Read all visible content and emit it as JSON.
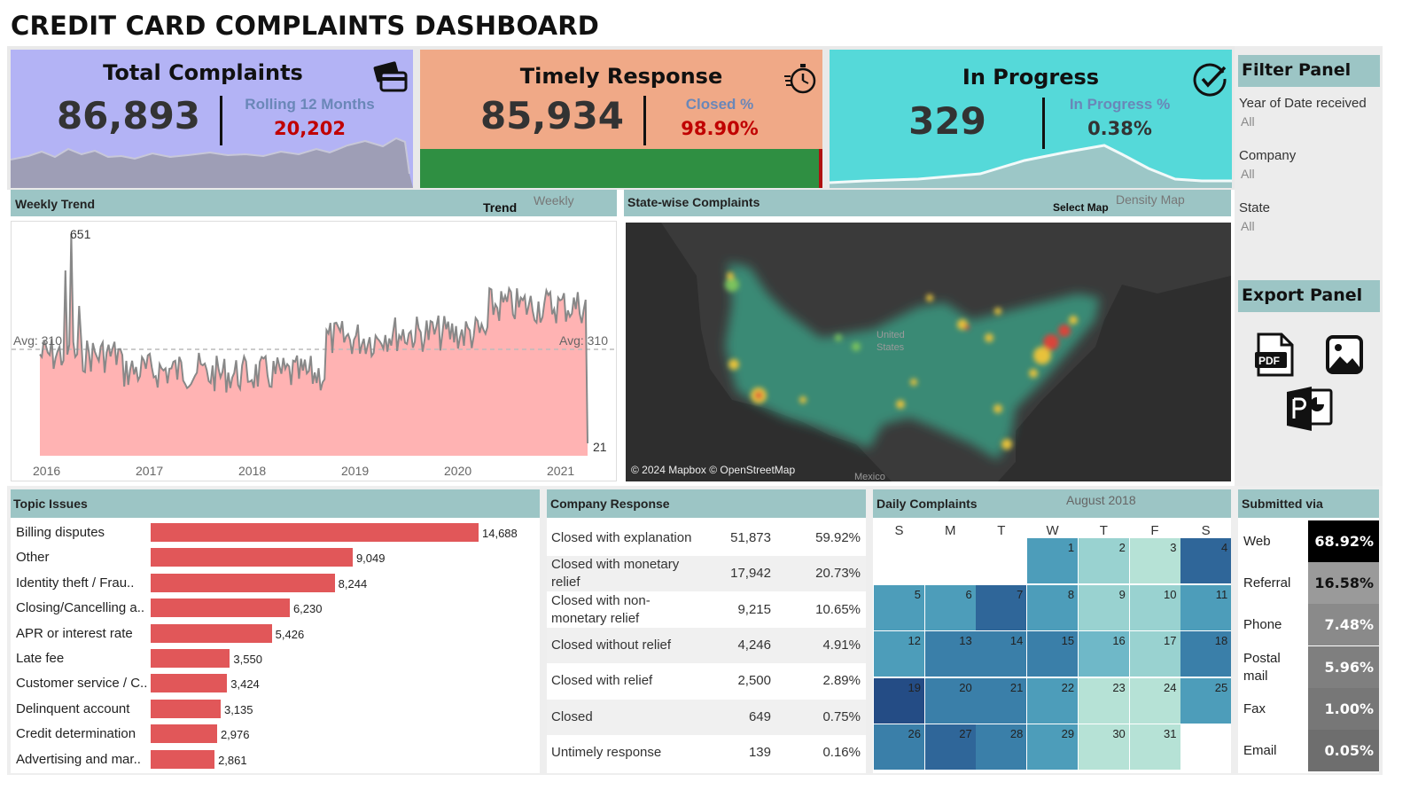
{
  "title": "CREDIT CARD COMPLAINTS DASHBOARD",
  "kpis": {
    "total": {
      "title": "Total Complaints",
      "value": "86,893",
      "sub_label": "Rolling 12 Months",
      "sub_value": "20,202",
      "icon": "credit-card-icon",
      "bg": "#b3b3f5",
      "sub_color": "#c00000"
    },
    "timely": {
      "title": "Timely Response",
      "value": "85,934",
      "sub_label": "Closed %",
      "sub_value": "98.90%",
      "icon": "stopwatch-icon",
      "bg": "#f0a987",
      "progress": 0.989,
      "sub_color": "#c00000"
    },
    "progress": {
      "title": "In Progress",
      "value": "329",
      "sub_label": "In Progress %",
      "sub_value": "0.38%",
      "icon": "check-circle-icon",
      "bg": "#55d9d9",
      "sub_color": "#333333"
    }
  },
  "weekly": {
    "header": "Weekly Trend",
    "trend_label": "Trend",
    "trend_value": "Weekly",
    "avg_label_left": "Avg: 310",
    "avg_label_right": "Avg: 310",
    "max_label": "651",
    "last_label": "21",
    "years": [
      "2016",
      "2017",
      "2018",
      "2019",
      "2020",
      "2021"
    ]
  },
  "map": {
    "header": "State-wise Complaints",
    "select_label": "Select Map",
    "select_value": "Density Map",
    "country_label_1": "United",
    "country_label_2": "States",
    "mexico_label": "Mexico",
    "attribution": "© 2024 Mapbox © OpenStreetMap"
  },
  "topics": {
    "header": "Topic Issues",
    "items": [
      {
        "label": "Billing disputes",
        "value": 14688,
        "display": "14,688"
      },
      {
        "label": "Other",
        "value": 9049,
        "display": "9,049"
      },
      {
        "label": "Identity theft / Frau..",
        "value": 8244,
        "display": "8,244"
      },
      {
        "label": "Closing/Cancelling a..",
        "value": 6230,
        "display": "6,230"
      },
      {
        "label": "APR or interest rate",
        "value": 5426,
        "display": "5,426"
      },
      {
        "label": "Late fee",
        "value": 3550,
        "display": "3,550"
      },
      {
        "label": "Customer service / C..",
        "value": 3424,
        "display": "3,424"
      },
      {
        "label": "Delinquent account",
        "value": 3135,
        "display": "3,135"
      },
      {
        "label": "Credit determination",
        "value": 2976,
        "display": "2,976"
      },
      {
        "label": "Advertising and mar..",
        "value": 2861,
        "display": "2,861"
      }
    ]
  },
  "company_response": {
    "header": "Company Response",
    "rows": [
      {
        "label": "Closed with explanation",
        "count": "51,873",
        "pct": "59.92%"
      },
      {
        "label": "Closed with monetary relief",
        "count": "17,942",
        "pct": "20.73%"
      },
      {
        "label": "Closed with non-monetary relief",
        "count": "9,215",
        "pct": "10.65%"
      },
      {
        "label": "Closed without relief",
        "count": "4,246",
        "pct": "4.91%"
      },
      {
        "label": "Closed with relief",
        "count": "2,500",
        "pct": "2.89%"
      },
      {
        "label": "Closed",
        "count": "649",
        "pct": "0.75%"
      },
      {
        "label": "Untimely response",
        "count": "139",
        "pct": "0.16%"
      }
    ]
  },
  "daily": {
    "header": "Daily Complaints",
    "month": "August 2018",
    "dow": [
      "S",
      "M",
      "T",
      "W",
      "T",
      "F",
      "S"
    ],
    "first_weekday": 3,
    "days": [
      "1",
      "2",
      "3",
      "4",
      "5",
      "6",
      "7",
      "8",
      "9",
      "10",
      "11",
      "12",
      "13",
      "14",
      "15",
      "16",
      "17",
      "18",
      "19",
      "20",
      "21",
      "22",
      "23",
      "24",
      "25",
      "26",
      "27",
      "28",
      "29",
      "30",
      "31"
    ],
    "levels": [
      3,
      1,
      0,
      5,
      3,
      3,
      5,
      3,
      1,
      1,
      3,
      3,
      4,
      4,
      4,
      2,
      1,
      4,
      6,
      4,
      4,
      3,
      0,
      0,
      3,
      4,
      5,
      4,
      3,
      0,
      0
    ]
  },
  "submitted": {
    "header": "Submitted via",
    "rows": [
      {
        "label": "Web",
        "value": "68.92%"
      },
      {
        "label": "Referral",
        "value": "16.58%"
      },
      {
        "label": "Phone",
        "value": "7.48%"
      },
      {
        "label": "Postal mail",
        "value": "5.96%"
      },
      {
        "label": "Fax",
        "value": "1.00%"
      },
      {
        "label": "Email",
        "value": "0.05%"
      }
    ]
  },
  "filters": {
    "header": "Filter Panel",
    "items": [
      {
        "label": "Year of Date received",
        "value": "All"
      },
      {
        "label": "Company",
        "value": "All"
      },
      {
        "label": "State",
        "value": "All"
      }
    ]
  },
  "export": {
    "header": "Export Panel",
    "pdf_label": "PDF"
  },
  "colors": {
    "header_teal": "#9cc5c5",
    "bar_red": "#e15759",
    "trend_fill": "#ffb3b3",
    "trend_line": "#888888"
  }
}
